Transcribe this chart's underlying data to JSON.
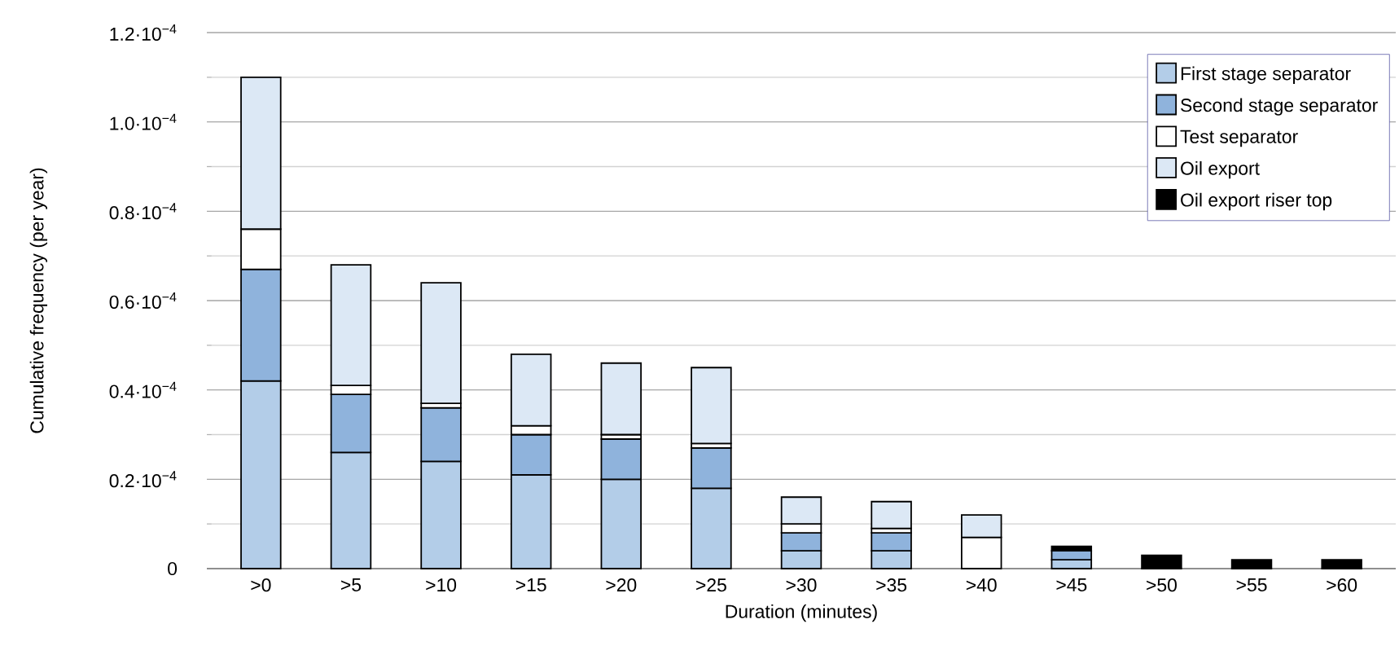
{
  "chart_data": {
    "type": "bar",
    "stacked": true,
    "xlabel": "Duration (minutes)",
    "ylabel": "Cumulative frequency (per year)",
    "categories": [
      ">0",
      ">5",
      ">10",
      ">15",
      ">20",
      ">25",
      ">30",
      ">35",
      ">40",
      ">45",
      ">50",
      ">55",
      ">60"
    ],
    "series": [
      {
        "name": "First stage separator",
        "color": "#b3cde8",
        "values": [
          4.2e-05,
          2.6e-05,
          2.4e-05,
          2.1e-05,
          2e-05,
          1.8e-05,
          4e-06,
          4e-06,
          null,
          2e-06,
          null,
          null,
          null
        ]
      },
      {
        "name": "Second stage separator",
        "color": "#8fb3dc",
        "values": [
          2.5e-05,
          1.3e-05,
          1.2e-05,
          9e-06,
          9e-06,
          9e-06,
          4e-06,
          4e-06,
          null,
          2e-06,
          null,
          null,
          null
        ]
      },
      {
        "name": "Test separator",
        "color": "#ffffff",
        "values": [
          9e-06,
          2e-06,
          1e-06,
          2e-06,
          1e-06,
          1e-06,
          2e-06,
          1e-06,
          7e-06,
          null,
          null,
          null,
          null
        ]
      },
      {
        "name": "Oil export",
        "color": "#dce8f5",
        "values": [
          3.4e-05,
          2.7e-05,
          2.7e-05,
          1.6e-05,
          1.6e-05,
          1.7e-05,
          6e-06,
          6e-06,
          5e-06,
          null,
          null,
          null,
          null
        ]
      },
      {
        "name": "Oil export riser top",
        "color": "#000000",
        "values": [
          null,
          null,
          null,
          null,
          null,
          null,
          null,
          null,
          null,
          1e-06,
          3e-06,
          2e-06,
          2e-06
        ]
      }
    ],
    "ylim": [
      0,
      0.00012
    ],
    "yticks": [
      {
        "value": 0,
        "label": "0"
      },
      {
        "value": 2e-05,
        "label": "0.2·10$^{−4}$"
      },
      {
        "value": 4e-05,
        "label": "0.4·10$^{−4}$"
      },
      {
        "value": 6e-05,
        "label": "0.6·10$^{−4}$"
      },
      {
        "value": 8e-05,
        "label": "0.8·10$^{−4}$"
      },
      {
        "value": 0.0001,
        "label": "1.0·10$^{−4}$"
      },
      {
        "value": 0.00012,
        "label": "1.2·10$^{−4}$"
      }
    ],
    "grid": "y",
    "legend": "top right"
  }
}
